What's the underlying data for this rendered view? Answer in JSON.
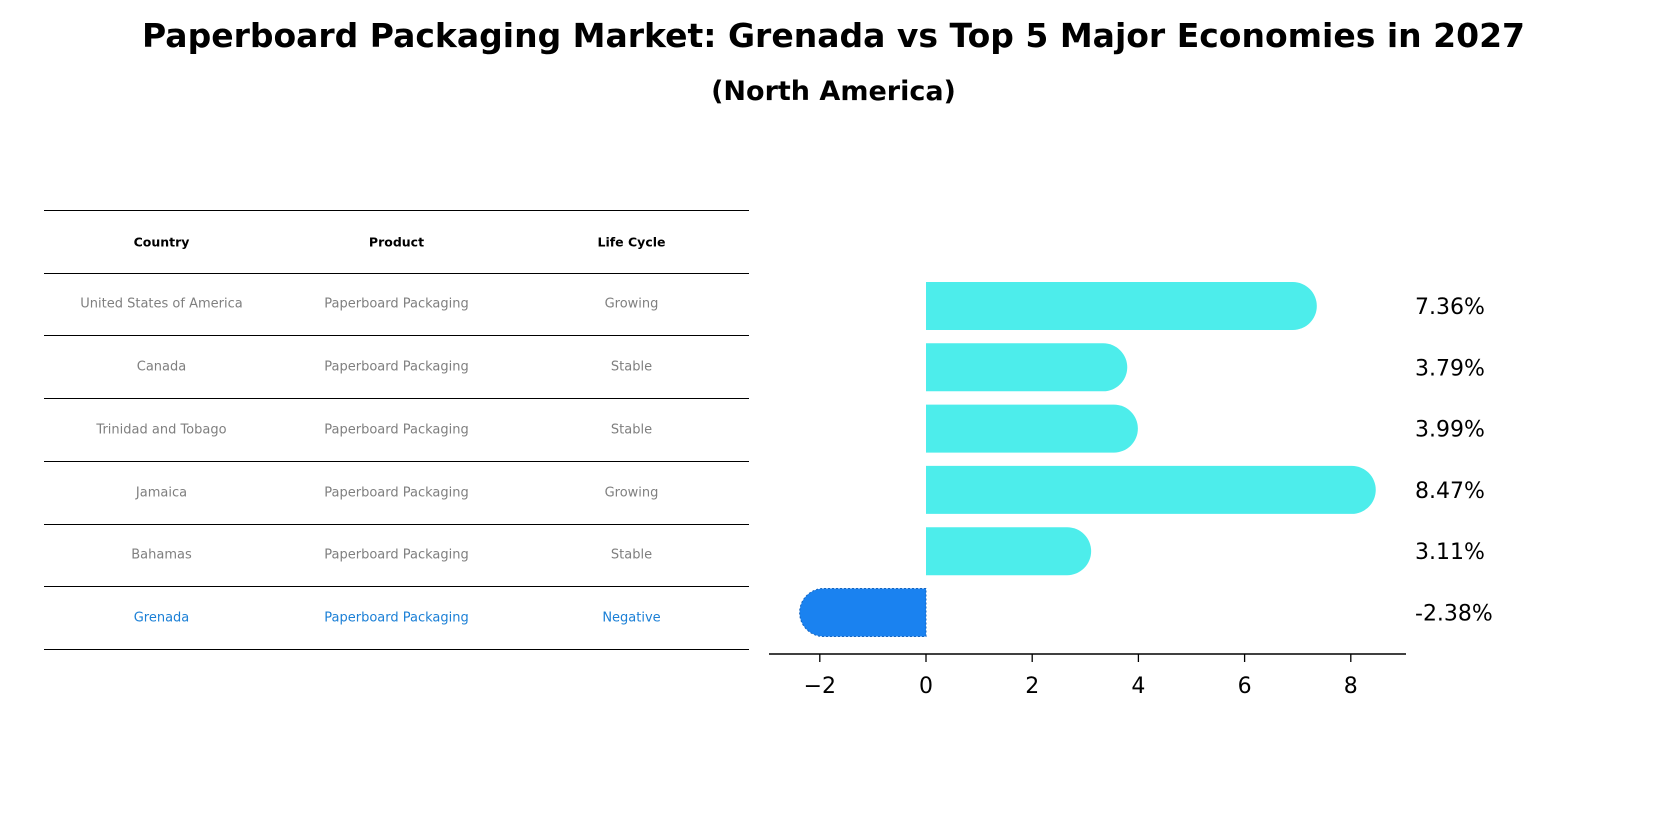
{
  "title": "Paperboard Packaging Market: Grenada vs Top 5 Major Economies in 2027",
  "subtitle": "(North America)",
  "table": {
    "headers": [
      "Country",
      "Product",
      "Life Cycle"
    ],
    "rows": [
      [
        "United States of America",
        "Paperboard Packaging",
        "Growing"
      ],
      [
        "Canada",
        "Paperboard Packaging",
        "Stable"
      ],
      [
        "Trinidad and Tobago",
        "Paperboard Packaging",
        "Stable"
      ],
      [
        "Jamaica",
        "Paperboard Packaging",
        "Growing"
      ],
      [
        "Bahamas",
        "Paperboard Packaging",
        "Stable"
      ],
      [
        "Grenada",
        "Paperboard Packaging",
        "Negative"
      ]
    ],
    "highlight_row": 5
  },
  "colors": {
    "bar": "#4dedeb",
    "highlight_bar": "#1a82f0",
    "highlight_text": "#1a7fd6",
    "cell_text": "#7f7f7f"
  },
  "chart_data": {
    "type": "bar",
    "orientation": "horizontal",
    "title": "Paperboard Packaging Market: Grenada vs Top 5 Major Economies in 2027",
    "subtitle": "(North America)",
    "categories": [
      "United States of America",
      "Canada",
      "Trinidad and Tobago",
      "Jamaica",
      "Bahamas",
      "Grenada"
    ],
    "values": [
      7.36,
      3.79,
      3.99,
      8.47,
      3.11,
      -2.38
    ],
    "value_labels": [
      "7.36%",
      "3.79%",
      "3.99%",
      "8.47%",
      "3.11%",
      "-2.38%"
    ],
    "xlabel": "",
    "ylabel": "",
    "xticks": [
      "−2",
      "0",
      "2",
      "4",
      "6",
      "8"
    ],
    "xlim": [
      -2.9,
      9.05
    ],
    "grid": false,
    "legend": null,
    "highlight": "Grenada"
  }
}
